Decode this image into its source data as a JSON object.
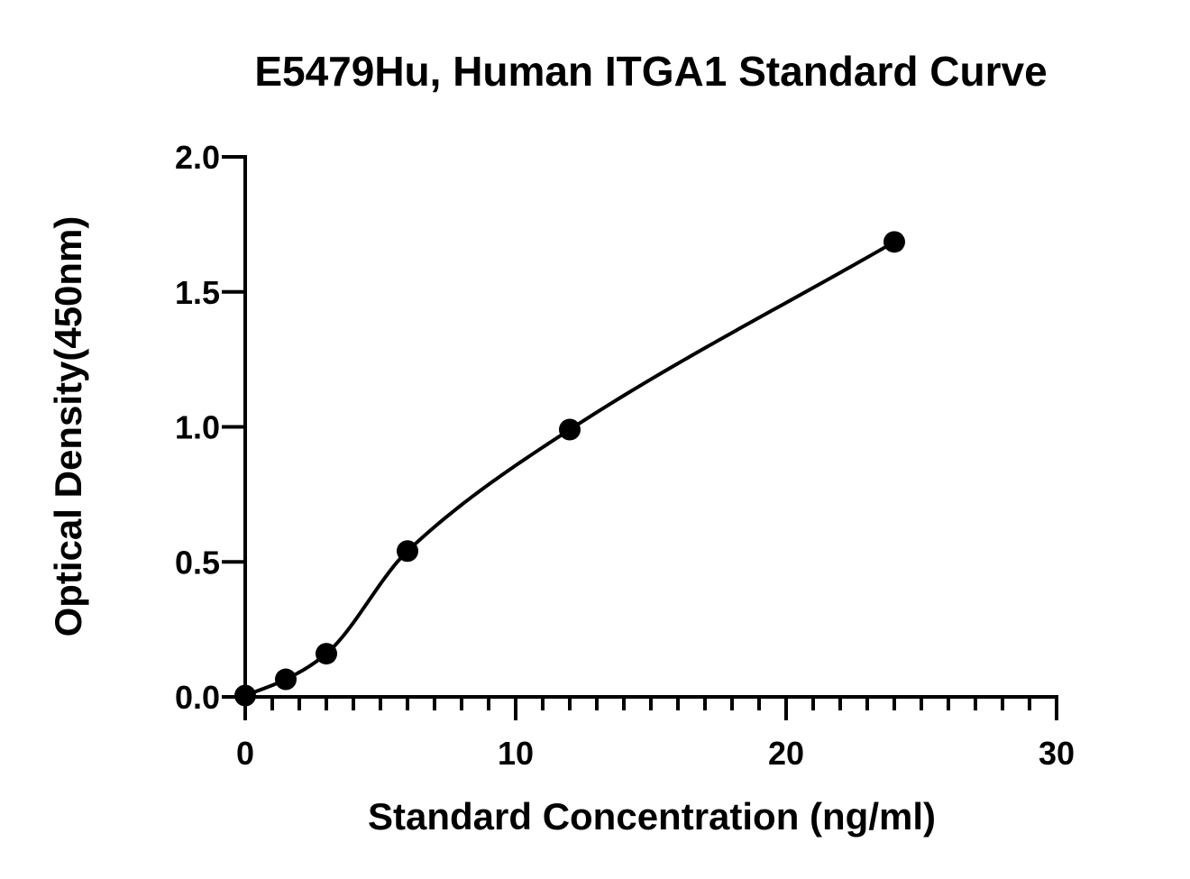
{
  "chart_data": {
    "type": "scatter",
    "title": "E5479Hu, Human ITGA1 Standard Curve",
    "xlabel": "Standard Concentration (ng/ml)",
    "ylabel": "Optical Density(450nm)",
    "xlim": [
      0,
      30
    ],
    "ylim": [
      0,
      2.0
    ],
    "x_ticks": [
      "0",
      "10",
      "20",
      "30"
    ],
    "y_ticks": [
      "0.0",
      "0.5",
      "1.0",
      "1.5",
      "2.0"
    ],
    "x_minor_step": 1,
    "grid": false,
    "legend": "none",
    "series": [
      {
        "points": [
          {
            "x": 0,
            "y": 0.005
          },
          {
            "x": 1.5,
            "y": 0.065
          },
          {
            "x": 3,
            "y": 0.16
          },
          {
            "x": 6,
            "y": 0.54
          },
          {
            "x": 12,
            "y": 0.99
          },
          {
            "x": 24,
            "y": 1.685
          }
        ],
        "fit_curve": true,
        "color": "#000000"
      }
    ]
  }
}
